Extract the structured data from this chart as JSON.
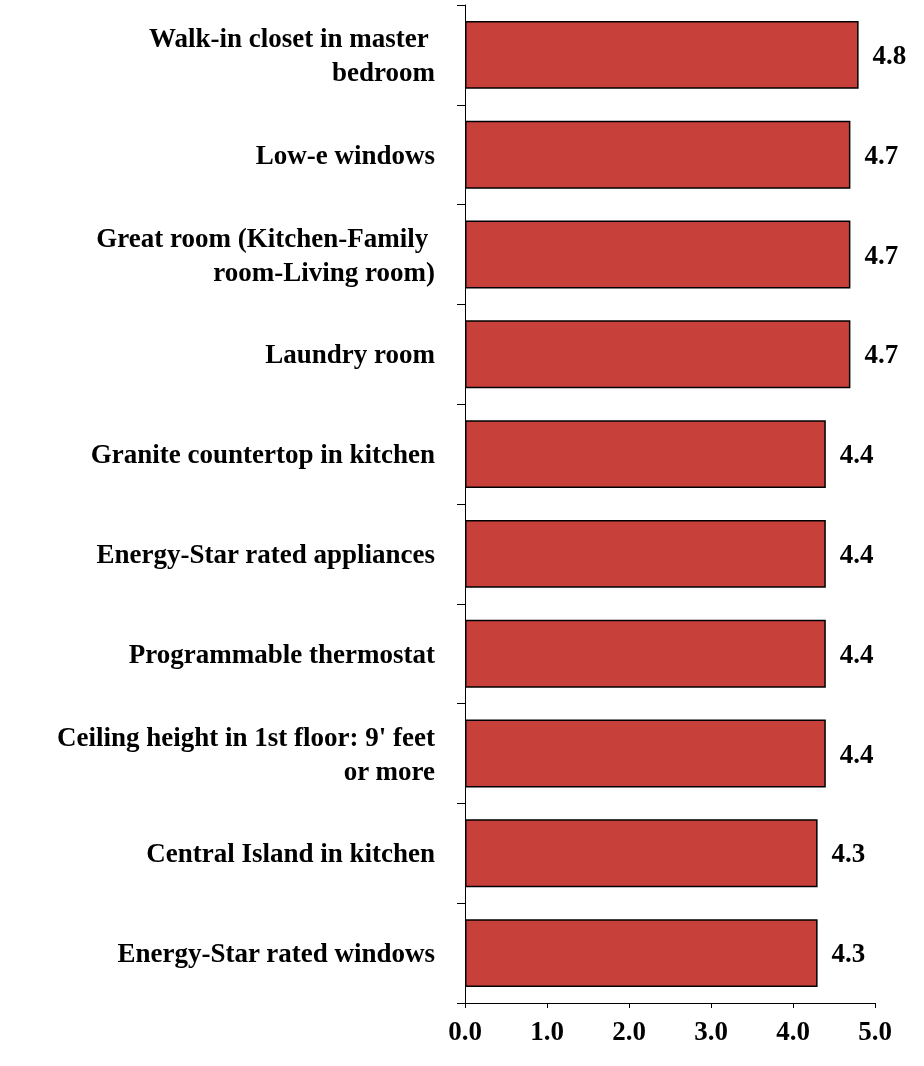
{
  "chart_data": {
    "type": "bar",
    "orientation": "horizontal",
    "categories": [
      "Walk-in closet in master bedroom",
      "Low-e windows",
      "Great room (Kitchen-Family room-Living room)",
      "Laundry room",
      "Granite countertop in kitchen",
      "Energy-Star rated appliances",
      "Programmable thermostat",
      "Ceiling height in 1st floor: 9' feet or more",
      "Central Island in kitchen",
      "Energy-Star rated windows"
    ],
    "values": [
      4.8,
      4.7,
      4.7,
      4.7,
      4.4,
      4.4,
      4.4,
      4.4,
      4.3,
      4.3
    ],
    "color": "#c8403a",
    "xlim": [
      0,
      5
    ],
    "xticks": [
      {
        "value": 0,
        "label": "0.0"
      },
      {
        "value": 1,
        "label": "1.0"
      },
      {
        "value": 2,
        "label": "2.0"
      },
      {
        "value": 3,
        "label": "3.0"
      },
      {
        "value": 4,
        "label": "4.0"
      },
      {
        "value": 5,
        "label": "5.0"
      }
    ],
    "data_labels": true,
    "grid": false
  }
}
